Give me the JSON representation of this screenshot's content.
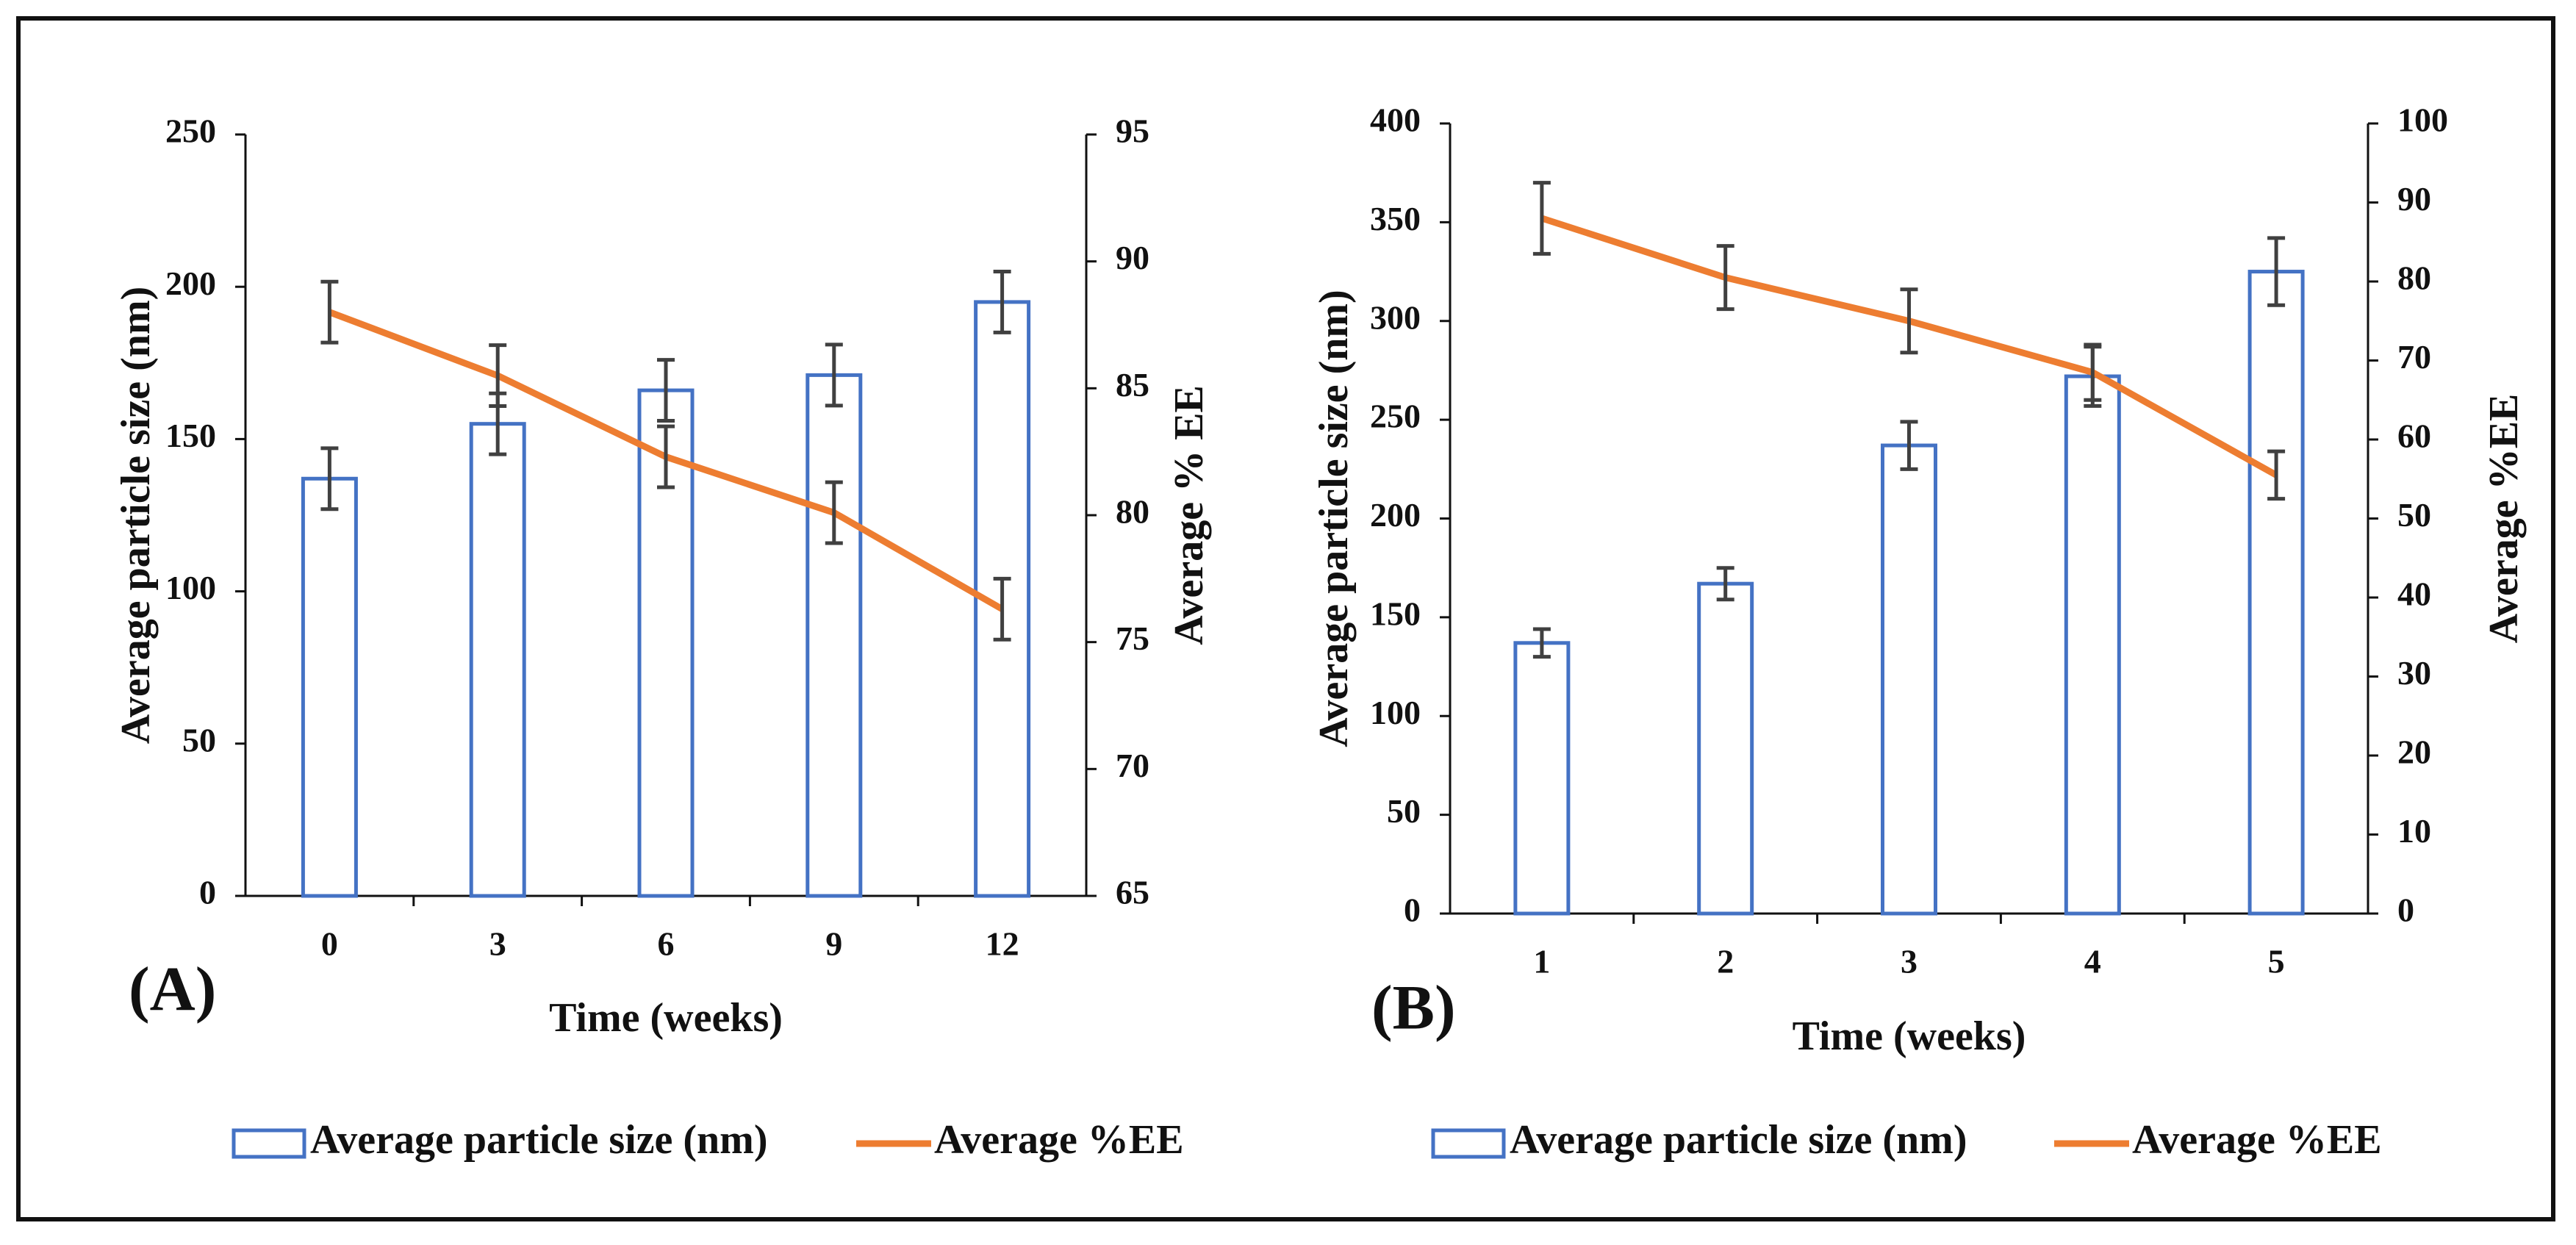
{
  "chart_data": [
    {
      "panel_label": "(A)",
      "type": "bar",
      "xlabel": "Time (weeks)",
      "ylabel": "Average particle size (nm)",
      "y2label": "Average   % EE",
      "categories": [
        "0",
        "3",
        "6",
        "9",
        "12"
      ],
      "ylim": [
        0,
        250
      ],
      "yticks": [
        "0",
        "50",
        "100",
        "150",
        "200",
        "250"
      ],
      "y2lim": [
        65,
        95
      ],
      "y2ticks": [
        "65",
        "70",
        "75",
        "80",
        "85",
        "90",
        "95"
      ],
      "series": [
        {
          "name": "Average particle size (nm)",
          "type": "bar",
          "axis": "left",
          "values": [
            137,
            155,
            166,
            171,
            195
          ],
          "errors": [
            10,
            10,
            10,
            10,
            10
          ]
        },
        {
          "name": "Average %EE",
          "type": "line",
          "axis": "right",
          "values": [
            88,
            85.5,
            82.3,
            80.1,
            76.3
          ],
          "errors": [
            1.2,
            1.2,
            1.2,
            1.2,
            1.2
          ]
        }
      ],
      "legend": [
        "Average particle size (nm)",
        "Average %EE"
      ]
    },
    {
      "panel_label": "(B)",
      "type": "bar",
      "xlabel": "Time (weeks)",
      "ylabel": "Average particle size (nm)",
      "y2label": "Average %EE",
      "categories": [
        "1",
        "2",
        "3",
        "4",
        "5"
      ],
      "ylim": [
        0,
        400
      ],
      "yticks": [
        "0",
        "50",
        "100",
        "150",
        "200",
        "250",
        "300",
        "350",
        "400"
      ],
      "y2lim": [
        0,
        100
      ],
      "y2ticks": [
        "0",
        "10",
        "20",
        "30",
        "40",
        "50",
        "60",
        "70",
        "80",
        "90",
        "100"
      ],
      "series": [
        {
          "name": "Average particle size (nm)",
          "type": "bar",
          "axis": "left",
          "values": [
            137,
            167,
            237,
            272,
            325
          ],
          "errors": [
            7,
            8,
            12,
            15,
            17
          ]
        },
        {
          "name": "Average %EE",
          "type": "line",
          "axis": "right",
          "values": [
            88,
            80.5,
            75,
            68.5,
            55.5
          ],
          "errors": [
            4.5,
            4,
            4,
            3.5,
            3
          ]
        }
      ],
      "legend": [
        "Average particle size (nm)",
        "Average %EE"
      ]
    }
  ],
  "colors": {
    "bar_stroke": "#4472C4",
    "line": "#ED7D31",
    "error_bar": "#404040",
    "axis": "#111111"
  }
}
